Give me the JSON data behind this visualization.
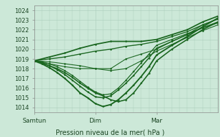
{
  "title": "Pression niveau de la mer( hPa )",
  "ylabel_ticks": [
    1014,
    1015,
    1016,
    1017,
    1018,
    1019,
    1020,
    1021,
    1022,
    1023,
    1024
  ],
  "ylim": [
    1013.5,
    1024.5
  ],
  "xlim": [
    0,
    72
  ],
  "xtick_positions": [
    0,
    24,
    48
  ],
  "xtick_labels": [
    "Samtun",
    "Dim",
    "Mar"
  ],
  "background_color": "#cce8d8",
  "grid_color": "#aaccbb",
  "line_color": "#1a6620",
  "lines": [
    {
      "x": [
        0,
        6,
        12,
        18,
        24,
        30,
        36,
        42,
        48,
        54,
        60,
        66,
        72
      ],
      "y": [
        1018.8,
        1018.5,
        1018.2,
        1018.0,
        1018.0,
        1018.0,
        1019.0,
        1019.5,
        1020.0,
        1020.8,
        1021.5,
        1022.5,
        1023.1
      ]
    },
    {
      "x": [
        0,
        3,
        6,
        9,
        12,
        15,
        18,
        21,
        24,
        27,
        30,
        33,
        36,
        39,
        42,
        45,
        48,
        54,
        60,
        66,
        72
      ],
      "y": [
        1018.8,
        1018.6,
        1018.3,
        1018.0,
        1017.6,
        1017.1,
        1016.5,
        1016.0,
        1015.5,
        1015.2,
        1014.8,
        1014.6,
        1014.8,
        1015.5,
        1016.5,
        1017.5,
        1018.8,
        1020.0,
        1021.0,
        1022.0,
        1022.8
      ]
    },
    {
      "x": [
        0,
        3,
        6,
        9,
        12,
        15,
        18,
        21,
        24,
        27,
        30,
        33,
        36,
        39,
        42,
        45,
        48,
        54,
        60,
        66,
        72
      ],
      "y": [
        1018.8,
        1018.5,
        1018.1,
        1017.6,
        1017.0,
        1016.3,
        1015.5,
        1015.0,
        1014.4,
        1014.1,
        1014.3,
        1014.8,
        1015.5,
        1016.3,
        1017.2,
        1018.2,
        1019.4,
        1020.4,
        1021.3,
        1022.3,
        1023.2
      ]
    },
    {
      "x": [
        0,
        6,
        12,
        18,
        24,
        30,
        36,
        42,
        48,
        54,
        60,
        66,
        72
      ],
      "y": [
        1018.8,
        1018.7,
        1018.5,
        1018.3,
        1018.0,
        1017.8,
        1018.0,
        1018.8,
        1019.8,
        1020.5,
        1021.2,
        1021.9,
        1022.5
      ]
    },
    {
      "x": [
        0,
        6,
        12,
        18,
        24,
        30,
        36,
        42,
        48,
        54,
        60,
        66,
        72
      ],
      "y": [
        1018.8,
        1019.0,
        1019.2,
        1019.5,
        1019.8,
        1020.0,
        1020.3,
        1020.5,
        1020.8,
        1021.3,
        1021.8,
        1022.5,
        1023.1
      ]
    },
    {
      "x": [
        0,
        6,
        12,
        18,
        24,
        30,
        36,
        42,
        48,
        54,
        60,
        66,
        72
      ],
      "y": [
        1018.8,
        1019.2,
        1019.6,
        1020.1,
        1020.5,
        1020.8,
        1020.8,
        1020.8,
        1021.0,
        1021.5,
        1022.0,
        1022.8,
        1023.4
      ]
    },
    {
      "x": [
        0,
        3,
        6,
        9,
        12,
        15,
        18,
        21,
        24,
        27,
        30,
        33,
        36,
        39,
        42,
        45,
        48,
        54,
        60,
        66,
        72
      ],
      "y": [
        1018.8,
        1018.6,
        1018.3,
        1017.9,
        1017.4,
        1016.8,
        1016.2,
        1015.6,
        1015.1,
        1015.0,
        1015.2,
        1015.8,
        1016.5,
        1017.3,
        1018.2,
        1019.1,
        1020.1,
        1020.8,
        1021.5,
        1022.2,
        1022.8
      ]
    },
    {
      "x": [
        0,
        3,
        6,
        9,
        12,
        15,
        18,
        21,
        24,
        27,
        30,
        33,
        36,
        39,
        42,
        45,
        48,
        54,
        60,
        66,
        72
      ],
      "y": [
        1018.8,
        1018.7,
        1018.5,
        1018.2,
        1017.8,
        1017.3,
        1016.7,
        1016.1,
        1015.6,
        1015.3,
        1015.4,
        1016.0,
        1016.8,
        1017.7,
        1018.6,
        1019.5,
        1020.4,
        1021.0,
        1021.6,
        1022.2,
        1022.7
      ]
    }
  ]
}
